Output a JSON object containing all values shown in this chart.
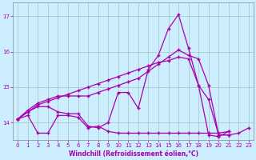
{
  "background_color": "#cceeff",
  "grid_color": "#aacccc",
  "line_color": "#aa00aa",
  "marker": "+",
  "xlabel": "Windchill (Refroidissement éolien,°C)",
  "ylim": [
    13.5,
    17.4
  ],
  "xlim": [
    -0.5,
    23.5
  ],
  "yticks": [
    14,
    15,
    16,
    17
  ],
  "xticks": [
    0,
    1,
    2,
    3,
    4,
    5,
    6,
    7,
    8,
    9,
    10,
    11,
    12,
    13,
    14,
    15,
    16,
    17,
    18,
    19,
    20,
    21,
    22,
    23
  ],
  "series": [
    [
      14.1,
      14.3,
      14.45,
      14.45,
      14.3,
      14.25,
      14.25,
      13.9,
      13.85,
      14.0,
      14.85,
      14.85,
      14.4,
      15.5,
      15.9,
      16.65,
      17.05,
      16.1,
      15.05,
      13.65,
      13.6,
      13.75,
      null,
      null
    ],
    [
      14.1,
      14.35,
      14.55,
      14.65,
      14.75,
      14.75,
      14.75,
      14.75,
      14.85,
      14.95,
      15.05,
      15.15,
      15.25,
      15.45,
      15.65,
      15.85,
      16.05,
      15.9,
      15.8,
      15.05,
      13.65,
      13.65,
      null,
      null
    ],
    [
      14.1,
      14.2,
      13.7,
      13.7,
      14.2,
      14.2,
      14.15,
      13.85,
      13.9,
      13.75,
      13.7,
      13.7,
      13.7,
      13.7,
      13.7,
      13.7,
      13.7,
      13.7,
      13.7,
      13.7,
      13.7,
      13.75,
      null,
      null
    ],
    [
      14.1,
      14.3,
      14.5,
      14.6,
      14.7,
      14.8,
      14.9,
      15.0,
      15.1,
      15.2,
      15.3,
      15.4,
      15.5,
      15.6,
      15.7,
      15.75,
      15.85,
      15.8,
      15.05,
      14.65,
      13.65,
      13.65,
      13.7,
      13.85
    ]
  ]
}
